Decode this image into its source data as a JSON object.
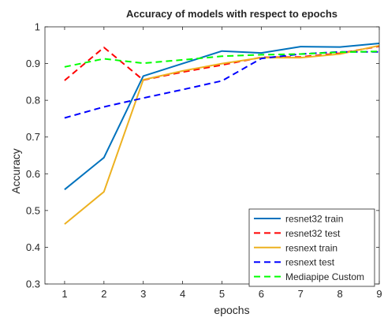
{
  "chart_data": {
    "type": "line",
    "title": "Accuracy of models with respect to epochs",
    "xlabel": "epochs",
    "ylabel": "Accuracy",
    "x": [
      1,
      2,
      3,
      4,
      5,
      6,
      7,
      8,
      9
    ],
    "xlim": [
      0.5,
      9
    ],
    "ylim": [
      0.3,
      1.0
    ],
    "xticks": [
      "1",
      "2",
      "3",
      "4",
      "5",
      "6",
      "7",
      "8",
      "9"
    ],
    "yticks": [
      "0.3",
      "0.4",
      "0.5",
      "0.6",
      "0.7",
      "0.8",
      "0.9",
      "1"
    ],
    "legend_position": "bottom-right",
    "grid": false,
    "series": [
      {
        "name": "resnet32 train",
        "color": "#0072BD",
        "dash": "solid",
        "values": [
          0.557,
          0.644,
          0.866,
          0.9,
          0.934,
          0.929,
          0.946,
          0.945,
          0.955
        ]
      },
      {
        "name": "resnet32 test",
        "color": "#FF0000",
        "dash": "dashed",
        "values": [
          0.854,
          0.944,
          0.855,
          0.877,
          0.896,
          0.917,
          0.918,
          0.928,
          0.947
        ]
      },
      {
        "name": "resnext train",
        "color": "#EDB120",
        "dash": "solid",
        "values": [
          0.463,
          0.551,
          0.856,
          0.88,
          0.9,
          0.916,
          0.916,
          0.926,
          0.949
        ]
      },
      {
        "name": "resnext test",
        "color": "#0000FF",
        "dash": "dashed",
        "values": [
          0.752,
          0.782,
          0.806,
          0.829,
          0.853,
          0.914,
          0.926,
          0.932,
          0.932
        ]
      },
      {
        "name": "Mediapipe Custom",
        "color": "#00FF00",
        "dash": "dashed",
        "values": [
          0.891,
          0.913,
          0.901,
          0.91,
          0.92,
          0.924,
          0.926,
          0.931,
          0.933
        ]
      }
    ]
  }
}
